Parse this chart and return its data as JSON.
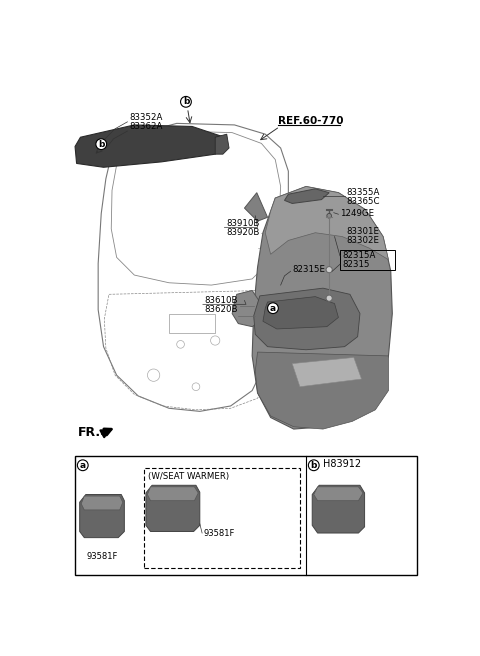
{
  "bg_color": "#ffffff",
  "fig_width": 4.8,
  "fig_height": 6.56,
  "dpi": 100,
  "labels": {
    "ref_label": "REF.60-770",
    "fr_label": "FR.",
    "label_83352A": "83352A",
    "label_83362A": "83362A",
    "label_83355A": "83355A",
    "label_83365C": "83365C",
    "label_1249GE": "1249GE",
    "label_83301E": "83301E",
    "label_83302E": "83302E",
    "label_82315A": "82315A",
    "label_82315": "82315",
    "label_82315E": "82315E",
    "label_83910B": "83910B",
    "label_83920B": "83920B",
    "label_83610B": "83610B",
    "label_83620B": "83620B",
    "h83912": "H83912",
    "label_93581F_1": "93581F",
    "label_wseat": "(W/SEAT WARMER)",
    "label_93581F_2": "93581F"
  }
}
